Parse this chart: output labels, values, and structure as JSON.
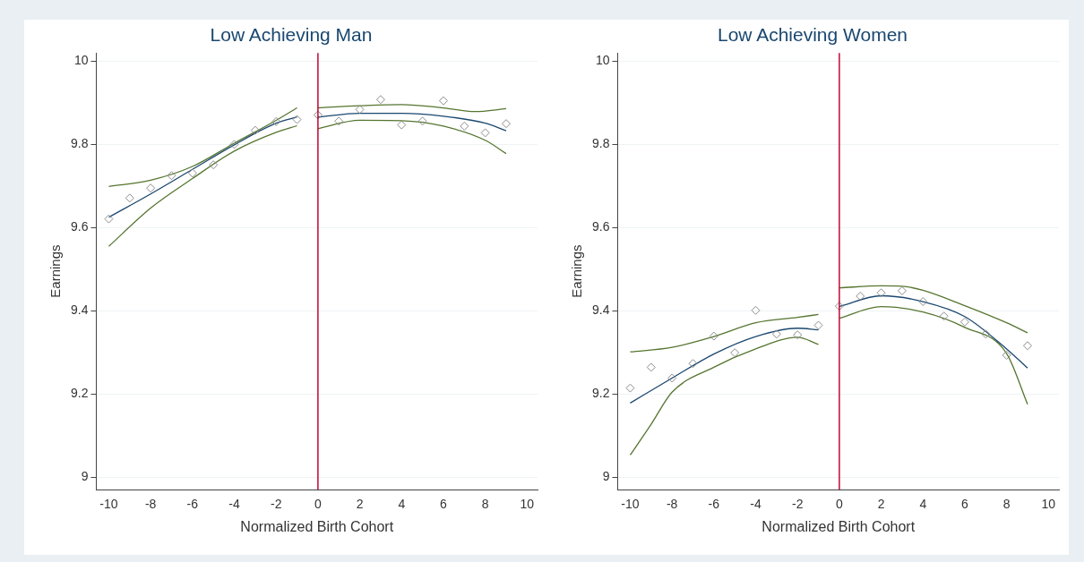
{
  "chart_data": [
    {
      "type": "scatter",
      "title": "Low Achieving Man",
      "xlabel": "Normalized Birth Cohort",
      "ylabel": "Earnings",
      "xlim": [
        -10.6,
        10.5
      ],
      "xticks": [
        -10,
        -8,
        -6,
        -4,
        -2,
        0,
        2,
        4,
        6,
        8,
        10
      ],
      "ylim": [
        8.97,
        10.02
      ],
      "yticks": [
        9,
        9.2,
        9.4,
        9.6,
        9.8,
        10
      ],
      "grid": "y",
      "legend": false,
      "ref_lines": [
        {
          "axis": "x",
          "value": 0,
          "color": "#c10534"
        }
      ],
      "series": [
        {
          "marker": "diamond",
          "color": "#8c8c8c",
          "x": [
            -10,
            -9,
            -8,
            -7,
            -6,
            -5,
            -4,
            -3,
            -2,
            -1,
            0,
            1,
            2,
            3,
            4,
            5,
            6,
            7,
            8,
            9
          ],
          "values": [
            9.621,
            9.671,
            9.695,
            9.725,
            9.731,
            9.751,
            9.8,
            9.834,
            9.855,
            9.86,
            9.871,
            9.856,
            9.884,
            9.908,
            9.847,
            9.856,
            9.905,
            9.844,
            9.828,
            9.85
          ]
        },
        {
          "type": "line",
          "marker": "none",
          "color": "#1a476f",
          "x": [
            -10,
            -8,
            -6,
            -4,
            -2,
            -1
          ],
          "values": [
            9.625,
            9.681,
            9.74,
            9.799,
            9.851,
            9.866
          ]
        },
        {
          "type": "line",
          "marker": "none",
          "color": "#55752f",
          "x": [
            -10,
            -8,
            -6,
            -4,
            -2,
            -1
          ],
          "values": [
            9.699,
            9.714,
            9.747,
            9.803,
            9.858,
            9.888
          ]
        },
        {
          "type": "line",
          "marker": "none",
          "color": "#55752f",
          "x": [
            -10,
            -8,
            -6,
            -4,
            -2,
            -1
          ],
          "values": [
            9.555,
            9.647,
            9.718,
            9.784,
            9.829,
            9.845
          ]
        },
        {
          "type": "line",
          "marker": "none",
          "color": "#1a476f",
          "x": [
            0,
            2,
            4,
            6,
            8,
            9
          ],
          "values": [
            9.866,
            9.875,
            9.875,
            9.868,
            9.851,
            9.833
          ]
        },
        {
          "type": "line",
          "marker": "none",
          "color": "#55752f",
          "x": [
            0,
            2,
            4,
            6,
            7.5,
            9
          ],
          "values": [
            9.888,
            9.893,
            9.896,
            9.888,
            9.879,
            9.886
          ]
        },
        {
          "type": "line",
          "marker": "none",
          "color": "#55752f",
          "x": [
            0,
            2,
            4,
            6,
            8,
            9
          ],
          "values": [
            9.838,
            9.858,
            9.857,
            9.844,
            9.81,
            9.778
          ]
        }
      ]
    },
    {
      "type": "scatter",
      "title": "Low Achieving Women",
      "xlabel": "Normalized Birth Cohort",
      "ylabel": "Earnings",
      "xlim": [
        -10.6,
        10.5
      ],
      "xticks": [
        -10,
        -8,
        -6,
        -4,
        -2,
        0,
        2,
        4,
        6,
        8,
        10
      ],
      "ylim": [
        8.97,
        10.02
      ],
      "yticks": [
        9,
        9.2,
        9.4,
        9.6,
        9.8,
        10
      ],
      "grid": "y",
      "legend": false,
      "ref_lines": [
        {
          "axis": "x",
          "value": 0,
          "color": "#c10534"
        }
      ],
      "series": [
        {
          "marker": "diamond",
          "color": "#8c8c8c",
          "x": [
            -10,
            -9,
            -8,
            -7,
            -6,
            -5,
            -4,
            -3,
            -2,
            -1,
            0,
            1,
            2,
            3,
            4,
            5,
            6,
            7,
            8,
            9
          ],
          "values": [
            9.214,
            9.264,
            9.238,
            9.273,
            9.339,
            9.299,
            9.401,
            9.344,
            9.342,
            9.365,
            9.411,
            9.435,
            9.443,
            9.448,
            9.422,
            9.387,
            9.373,
            9.344,
            9.293,
            9.316
          ]
        },
        {
          "type": "line",
          "marker": "none",
          "color": "#1a476f",
          "x": [
            -10,
            -8,
            -6,
            -4,
            -2,
            -1
          ],
          "values": [
            9.178,
            9.238,
            9.296,
            9.338,
            9.358,
            9.354
          ]
        },
        {
          "type": "line",
          "marker": "none",
          "color": "#55752f",
          "x": [
            -10,
            -8,
            -6,
            -4,
            -2,
            -1
          ],
          "values": [
            9.301,
            9.312,
            9.338,
            9.371,
            9.384,
            9.391
          ]
        },
        {
          "type": "line",
          "marker": "none",
          "color": "#55752f",
          "x": [
            -10,
            -9,
            -8,
            -6,
            -4,
            -2,
            -1
          ],
          "values": [
            9.053,
            9.127,
            9.204,
            9.264,
            9.308,
            9.336,
            9.319
          ]
        },
        {
          "type": "line",
          "marker": "none",
          "color": "#1a476f",
          "x": [
            0,
            2,
            4,
            6,
            8,
            9
          ],
          "values": [
            9.41,
            9.436,
            9.422,
            9.386,
            9.308,
            9.262
          ]
        },
        {
          "type": "line",
          "marker": "none",
          "color": "#55752f",
          "x": [
            0,
            2,
            3,
            4,
            6,
            8,
            9
          ],
          "values": [
            9.455,
            9.46,
            9.459,
            9.449,
            9.412,
            9.371,
            9.347
          ]
        },
        {
          "type": "line",
          "marker": "none",
          "color": "#55752f",
          "x": [
            0,
            2,
            4,
            6,
            8,
            9
          ],
          "values": [
            9.382,
            9.41,
            9.397,
            9.36,
            9.297,
            9.175
          ]
        }
      ]
    }
  ]
}
